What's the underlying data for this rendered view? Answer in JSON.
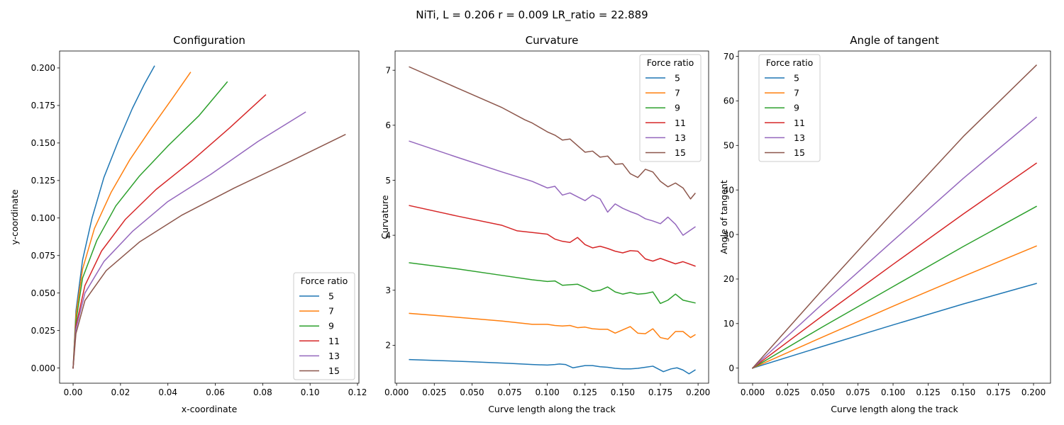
{
  "suptitle": "NiTi, L = 0.206 r = 0.009 LR_ratio = 22.889",
  "colors": [
    "#1f77b4",
    "#ff7f0e",
    "#2ca02c",
    "#d62728",
    "#9467bd",
    "#8c564b"
  ],
  "chart_data": [
    {
      "type": "line",
      "title": "Configuration",
      "xlabel": "x-coordinate",
      "ylabel": "y-coordinate",
      "xlim": [
        -0.0057,
        0.1206
      ],
      "ylim": [
        -0.0101,
        0.2113
      ],
      "xticks": [
        "0.00",
        "0.02",
        "0.04",
        "0.06",
        "0.08",
        "0.10",
        "0.12"
      ],
      "xtick_values": [
        0,
        0.02,
        0.04,
        0.06,
        0.08,
        0.1,
        0.12
      ],
      "yticks": [
        "0.000",
        "0.025",
        "0.050",
        "0.075",
        "0.100",
        "0.125",
        "0.150",
        "0.175",
        "0.200"
      ],
      "ytick_values": [
        0,
        0.025,
        0.05,
        0.075,
        0.1,
        0.125,
        0.15,
        0.175,
        0.2
      ],
      "legend": {
        "title": "Force ratio",
        "position": "lower right"
      },
      "series": [
        {
          "name": "5",
          "x": [
            0,
            0.0012,
            0.004,
            0.008,
            0.013,
            0.019,
            0.025,
            0.03,
            0.0343
          ],
          "y": [
            0,
            0.038,
            0.072,
            0.1,
            0.127,
            0.151,
            0.173,
            0.189,
            0.2012
          ]
        },
        {
          "name": "7",
          "x": [
            0,
            0.0012,
            0.004,
            0.009,
            0.016,
            0.024,
            0.033,
            0.042,
            0.0495
          ],
          "y": [
            0,
            0.035,
            0.066,
            0.093,
            0.117,
            0.139,
            0.16,
            0.18,
            0.197
          ]
        },
        {
          "name": "9",
          "x": [
            0,
            0.0012,
            0.004,
            0.01,
            0.018,
            0.028,
            0.04,
            0.053,
            0.065
          ],
          "y": [
            0,
            0.031,
            0.06,
            0.085,
            0.108,
            0.128,
            0.148,
            0.168,
            0.1906
          ]
        },
        {
          "name": "11",
          "x": [
            0,
            0.0012,
            0.005,
            0.012,
            0.022,
            0.035,
            0.05,
            0.066,
            0.0812
          ],
          "y": [
            0,
            0.028,
            0.055,
            0.078,
            0.099,
            0.119,
            0.138,
            0.16,
            0.182
          ]
        },
        {
          "name": "13",
          "x": [
            0,
            0.0012,
            0.005,
            0.013,
            0.025,
            0.04,
            0.058,
            0.078,
            0.098
          ],
          "y": [
            0,
            0.026,
            0.05,
            0.071,
            0.091,
            0.111,
            0.129,
            0.151,
            0.1705
          ]
        },
        {
          "name": "15",
          "x": [
            0,
            0.0012,
            0.005,
            0.014,
            0.028,
            0.046,
            0.068,
            0.092,
            0.1148
          ],
          "y": [
            0,
            0.023,
            0.045,
            0.065,
            0.084,
            0.102,
            0.12,
            0.138,
            0.1556
          ]
        }
      ]
    },
    {
      "type": "line",
      "title": "Curvature",
      "xlabel": "Curve length along the track",
      "ylabel": "Curvature",
      "xlim": [
        -0.001,
        0.207
      ],
      "ylim": [
        1.31,
        7.35
      ],
      "xticks": [
        "0.000",
        "0.025",
        "0.050",
        "0.075",
        "0.100",
        "0.125",
        "0.150",
        "0.175",
        "0.200"
      ],
      "xtick_values": [
        0,
        0.025,
        0.05,
        0.075,
        0.1,
        0.125,
        0.15,
        0.175,
        0.2
      ],
      "yticks": [
        "2",
        "3",
        "4",
        "5",
        "6",
        "7"
      ],
      "ytick_values": [
        2,
        3,
        4,
        5,
        6,
        7
      ],
      "legend": {
        "title": "Force ratio",
        "position": "upper right"
      },
      "series": [
        {
          "name": "5",
          "x": [
            0.0085,
            0.05,
            0.075,
            0.09,
            0.1,
            0.105,
            0.108,
            0.112,
            0.117,
            0.125,
            0.13,
            0.135,
            0.14,
            0.145,
            0.15,
            0.155,
            0.16,
            0.165,
            0.17,
            0.177,
            0.182,
            0.186,
            0.19,
            0.194,
            0.198
          ],
          "y": [
            1.74,
            1.7,
            1.67,
            1.65,
            1.64,
            1.65,
            1.66,
            1.65,
            1.59,
            1.63,
            1.63,
            1.61,
            1.6,
            1.58,
            1.57,
            1.57,
            1.58,
            1.6,
            1.62,
            1.52,
            1.57,
            1.59,
            1.55,
            1.48,
            1.55
          ]
        },
        {
          "name": "7",
          "x": [
            0.0085,
            0.04,
            0.07,
            0.09,
            0.1,
            0.105,
            0.11,
            0.115,
            0.12,
            0.125,
            0.13,
            0.135,
            0.14,
            0.145,
            0.15,
            0.155,
            0.16,
            0.165,
            0.17,
            0.175,
            0.18,
            0.185,
            0.19,
            0.195,
            0.198
          ],
          "y": [
            2.58,
            2.51,
            2.44,
            2.38,
            2.38,
            2.36,
            2.35,
            2.36,
            2.32,
            2.33,
            2.3,
            2.29,
            2.29,
            2.22,
            2.28,
            2.34,
            2.22,
            2.21,
            2.3,
            2.14,
            2.11,
            2.25,
            2.25,
            2.14,
            2.19
          ]
        },
        {
          "name": "9",
          "x": [
            0.0085,
            0.04,
            0.07,
            0.09,
            0.1,
            0.105,
            0.11,
            0.115,
            0.12,
            0.125,
            0.13,
            0.135,
            0.14,
            0.145,
            0.15,
            0.155,
            0.16,
            0.165,
            0.17,
            0.175,
            0.18,
            0.185,
            0.19,
            0.198
          ],
          "y": [
            3.5,
            3.39,
            3.27,
            3.19,
            3.16,
            3.17,
            3.09,
            3.1,
            3.11,
            3.05,
            2.98,
            3.0,
            3.06,
            2.97,
            2.93,
            2.96,
            2.93,
            2.94,
            2.97,
            2.76,
            2.82,
            2.93,
            2.82,
            2.77
          ]
        },
        {
          "name": "11",
          "x": [
            0.0085,
            0.04,
            0.07,
            0.08,
            0.1,
            0.105,
            0.11,
            0.115,
            0.12,
            0.125,
            0.13,
            0.135,
            0.14,
            0.145,
            0.15,
            0.155,
            0.16,
            0.165,
            0.17,
            0.175,
            0.18,
            0.185,
            0.19,
            0.198
          ],
          "y": [
            4.54,
            4.35,
            4.18,
            4.08,
            4.02,
            3.93,
            3.89,
            3.87,
            3.96,
            3.83,
            3.77,
            3.8,
            3.76,
            3.71,
            3.68,
            3.72,
            3.71,
            3.57,
            3.53,
            3.58,
            3.53,
            3.48,
            3.52,
            3.44
          ]
        },
        {
          "name": "13",
          "x": [
            0.0085,
            0.04,
            0.07,
            0.09,
            0.1,
            0.105,
            0.11,
            0.115,
            0.12,
            0.125,
            0.13,
            0.135,
            0.14,
            0.145,
            0.15,
            0.155,
            0.16,
            0.165,
            0.17,
            0.175,
            0.18,
            0.185,
            0.19,
            0.198
          ],
          "y": [
            5.71,
            5.42,
            5.15,
            4.98,
            4.86,
            4.89,
            4.73,
            4.77,
            4.7,
            4.63,
            4.73,
            4.66,
            4.42,
            4.57,
            4.49,
            4.43,
            4.38,
            4.3,
            4.26,
            4.21,
            4.33,
            4.2,
            4.0,
            4.15
          ]
        },
        {
          "name": "15",
          "x": [
            0.0085,
            0.04,
            0.07,
            0.085,
            0.09,
            0.1,
            0.105,
            0.11,
            0.115,
            0.12,
            0.125,
            0.13,
            0.135,
            0.14,
            0.145,
            0.15,
            0.155,
            0.16,
            0.165,
            0.17,
            0.175,
            0.18,
            0.185,
            0.19,
            0.195,
            0.198
          ],
          "y": [
            7.06,
            6.68,
            6.32,
            6.1,
            6.04,
            5.88,
            5.82,
            5.73,
            5.75,
            5.63,
            5.51,
            5.53,
            5.42,
            5.44,
            5.29,
            5.3,
            5.12,
            5.05,
            5.2,
            5.15,
            4.98,
            4.88,
            4.95,
            4.86,
            4.66,
            4.76
          ]
        }
      ]
    },
    {
      "type": "line",
      "title": "Angle of tangent",
      "xlabel": "Curve length along the track",
      "ylabel": "Angle of tangent",
      "xlim": [
        -0.0101,
        0.2121
      ],
      "ylim": [
        -3.39,
        71.2
      ],
      "xticks": [
        "0.000",
        "0.025",
        "0.050",
        "0.075",
        "0.100",
        "0.125",
        "0.150",
        "0.175",
        "0.200"
      ],
      "xtick_values": [
        0,
        0.025,
        0.05,
        0.075,
        0.1,
        0.125,
        0.15,
        0.175,
        0.2
      ],
      "yticks": [
        "0",
        "10",
        "20",
        "30",
        "40",
        "50",
        "60",
        "70"
      ],
      "ytick_values": [
        0,
        10,
        20,
        30,
        40,
        50,
        60,
        70
      ],
      "legend": {
        "title": "Force ratio",
        "position": "upper left"
      },
      "series": [
        {
          "name": "5",
          "x": [
            0,
            0.05,
            0.1,
            0.15,
            0.202
          ],
          "y": [
            0,
            4.9,
            9.7,
            14.4,
            19.0
          ]
        },
        {
          "name": "7",
          "x": [
            0,
            0.05,
            0.1,
            0.15,
            0.202
          ],
          "y": [
            0,
            7.0,
            13.9,
            20.6,
            27.4
          ]
        },
        {
          "name": "9",
          "x": [
            0,
            0.05,
            0.1,
            0.15,
            0.202
          ],
          "y": [
            0,
            9.3,
            18.3,
            27.3,
            36.3
          ]
        },
        {
          "name": "11",
          "x": [
            0,
            0.05,
            0.1,
            0.15,
            0.202
          ],
          "y": [
            0,
            11.8,
            23.3,
            34.6,
            46.0
          ]
        },
        {
          "name": "13",
          "x": [
            0,
            0.05,
            0.1,
            0.15,
            0.202
          ],
          "y": [
            0,
            14.5,
            28.6,
            42.6,
            56.3
          ]
        },
        {
          "name": "15",
          "x": [
            0,
            0.05,
            0.1,
            0.15,
            0.202
          ],
          "y": [
            0,
            17.7,
            35.0,
            52.0,
            68.0
          ]
        }
      ]
    }
  ]
}
